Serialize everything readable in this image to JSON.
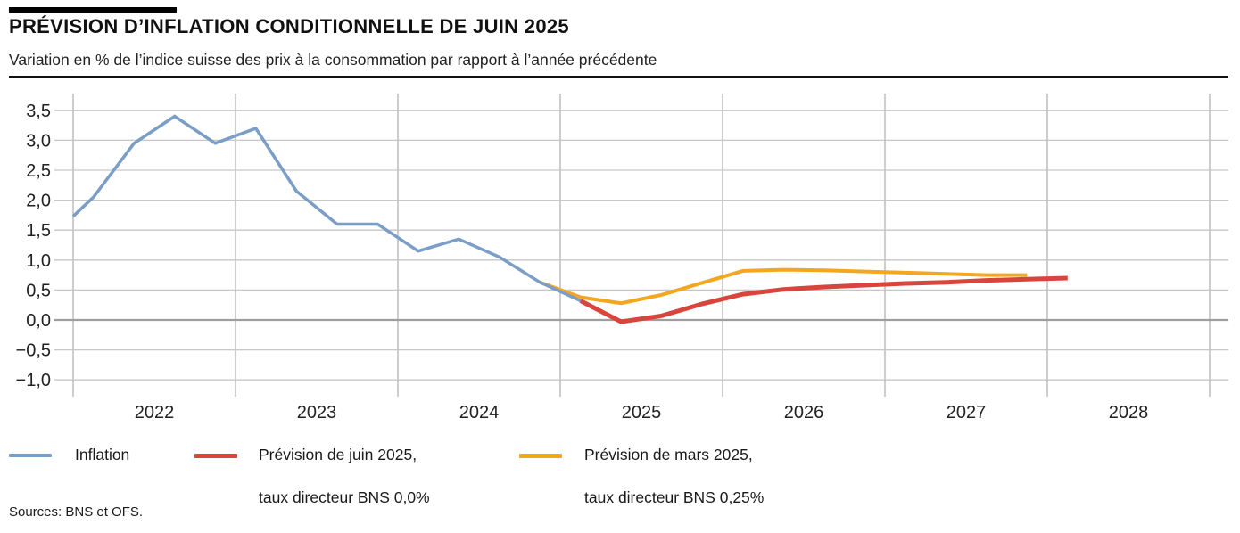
{
  "header": {
    "title": "PRÉVISION D’INFLATION CONDITIONNELLE DE JUIN 2025",
    "subtitle": "Variation en % de l’indice suisse des prix à la consommation par rapport à l’année précédente"
  },
  "chart_data": {
    "type": "line",
    "title": "Prévision d’inflation conditionnelle de juin 2025",
    "ylabel": "Variation en % de l'indice suisse des prix à la consommation par rapport à l'année précédente",
    "grid": true,
    "legend_position": "bottom",
    "x_axis": {
      "domain": [
        2021.88,
        2029.12
      ],
      "gridline_years": [
        2022,
        2023,
        2024,
        2025,
        2026,
        2027,
        2028,
        2029
      ],
      "labels": [
        {
          "year": 2022,
          "label": "2022"
        },
        {
          "year": 2023,
          "label": "2023"
        },
        {
          "year": 2024,
          "label": "2024"
        },
        {
          "year": 2025,
          "label": "2025"
        },
        {
          "year": 2026,
          "label": "2026"
        },
        {
          "year": 2027,
          "label": "2027"
        },
        {
          "year": 2028,
          "label": "2028"
        }
      ]
    },
    "y_axis": {
      "ylim": [
        -1.0,
        3.5
      ],
      "step": 0.5,
      "ticks": [
        {
          "value": 3.5,
          "label": "3,5"
        },
        {
          "value": 3.0,
          "label": "3,0"
        },
        {
          "value": 2.5,
          "label": "2,5"
        },
        {
          "value": 2.0,
          "label": "2,0"
        },
        {
          "value": 1.5,
          "label": "1,5"
        },
        {
          "value": 1.0,
          "label": "1,0"
        },
        {
          "value": 0.5,
          "label": "0,5"
        },
        {
          "value": 0.0,
          "label": "0,0"
        },
        {
          "value": -0.5,
          "label": "−0,5"
        },
        {
          "value": -1.0,
          "label": "−1,0"
        }
      ],
      "zero_line_emphasized": true
    },
    "series": [
      {
        "name": "Prévision de mars 2025, taux directeur BNS 0,25%",
        "color": "#f3a61f",
        "stroke_width": 4,
        "points": [
          [
            2024.875,
            0.63
          ],
          [
            2025.125,
            0.38
          ],
          [
            2025.375,
            0.28
          ],
          [
            2025.625,
            0.42
          ],
          [
            2025.875,
            0.62
          ],
          [
            2026.125,
            0.82
          ],
          [
            2026.375,
            0.84
          ],
          [
            2026.625,
            0.83
          ],
          [
            2026.875,
            0.81
          ],
          [
            2027.125,
            0.79
          ],
          [
            2027.375,
            0.77
          ],
          [
            2027.625,
            0.75
          ],
          [
            2027.875,
            0.75
          ]
        ]
      },
      {
        "name": "Inflation",
        "color": "#7b9ec7",
        "stroke_width": 3.5,
        "points": [
          [
            2022.0,
            1.73
          ],
          [
            2022.125,
            2.05
          ],
          [
            2022.375,
            2.95
          ],
          [
            2022.625,
            3.4
          ],
          [
            2022.875,
            2.95
          ],
          [
            2023.125,
            3.2
          ],
          [
            2023.375,
            2.15
          ],
          [
            2023.625,
            1.6
          ],
          [
            2023.875,
            1.6
          ],
          [
            2024.125,
            1.15
          ],
          [
            2024.375,
            1.35
          ],
          [
            2024.625,
            1.05
          ],
          [
            2024.875,
            0.63
          ],
          [
            2025.125,
            0.32
          ]
        ]
      },
      {
        "name": "Prévision de juin 2025, taux directeur BNS 0,0%",
        "color": "#d8453c",
        "stroke_width": 5,
        "points": [
          [
            2025.125,
            0.32
          ],
          [
            2025.375,
            -0.03
          ],
          [
            2025.625,
            0.07
          ],
          [
            2025.875,
            0.27
          ],
          [
            2026.125,
            0.43
          ],
          [
            2026.375,
            0.51
          ],
          [
            2026.625,
            0.55
          ],
          [
            2026.875,
            0.58
          ],
          [
            2027.125,
            0.61
          ],
          [
            2027.375,
            0.63
          ],
          [
            2027.625,
            0.66
          ],
          [
            2027.875,
            0.68
          ],
          [
            2028.125,
            0.7
          ]
        ]
      }
    ],
    "colors": {
      "grid": "#c6c6c6",
      "grid_vertical": "#b2b2b2",
      "zero_line": "#9e9e9e",
      "text": "#222222"
    }
  },
  "legend": {
    "items": [
      {
        "color": "#7b9ec7",
        "line1": "Inflation",
        "line2": ""
      },
      {
        "color": "#d8453c",
        "line1": "Prévision de juin 2025,",
        "line2": "taux directeur BNS 0,0%"
      },
      {
        "color": "#f3a61f",
        "line1": "Prévision de mars 2025,",
        "line2": "taux directeur BNS 0,25%"
      }
    ]
  },
  "footer": {
    "sources": "Sources: BNS et OFS."
  }
}
